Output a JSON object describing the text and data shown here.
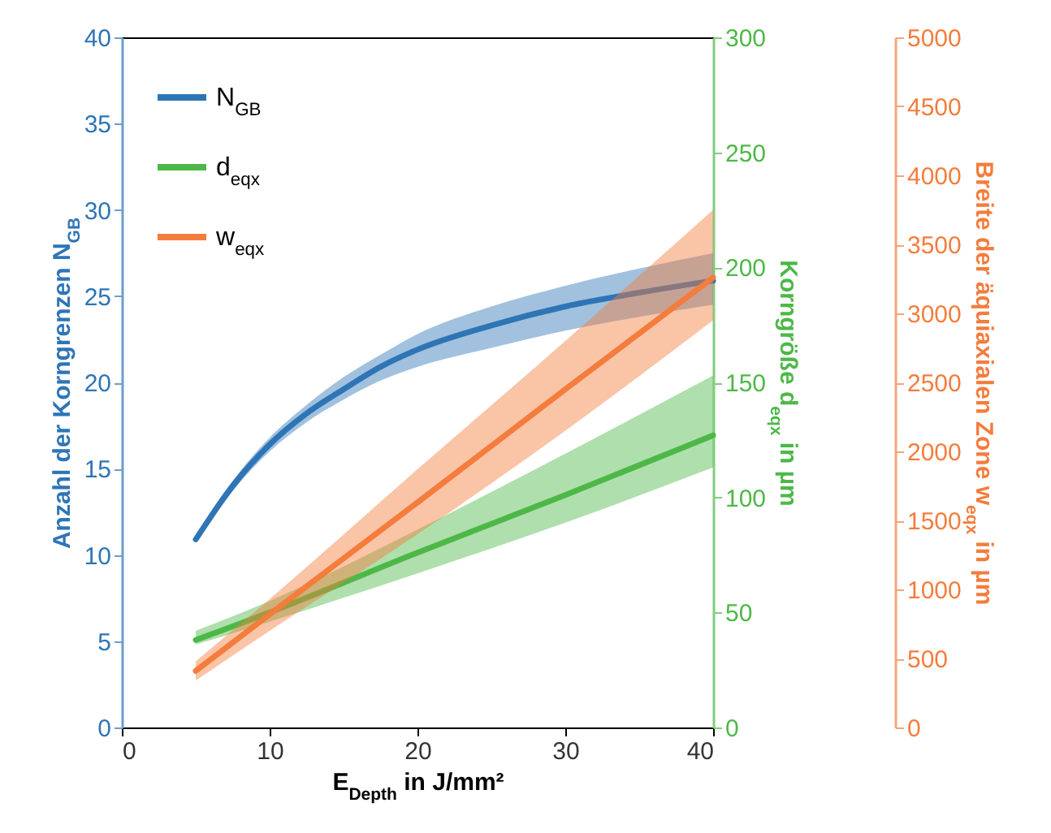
{
  "chart_data": {
    "type": "line",
    "xlabel": "E$_{Depth}$ in J/mm²",
    "ylabel": "Anzahl der Korngrenzen N$_{GB}$",
    "y2label": "Korngröße d$_{eqx}$ in µm",
    "y3label": "Breite der äquiaxialen Zone w$_{eqx}$ in µm",
    "xlim": [
      0,
      40
    ],
    "xticks": [
      0,
      10,
      20,
      30,
      40
    ],
    "ylim": [
      0,
      40
    ],
    "yticks": [
      0,
      5,
      10,
      15,
      20,
      25,
      30,
      35,
      40
    ],
    "y2lim": [
      0,
      300
    ],
    "y2ticks": [
      0,
      50,
      100,
      150,
      200,
      250,
      300
    ],
    "y3lim": [
      0,
      5000
    ],
    "y3ticks": [
      0,
      500,
      1000,
      1500,
      2000,
      2500,
      3000,
      3500,
      4000,
      4500,
      5000
    ],
    "grid": false,
    "legend": "top left",
    "line_style": "solid",
    "series": [
      {
        "name": "N$_{GB}$",
        "color": "#2e75b6",
        "x": [
          5,
          7.5,
          10,
          12.5,
          15,
          17.5,
          20,
          25,
          30,
          35,
          40
        ],
        "values": [
          10.9,
          14.0,
          16.4,
          18.2,
          19.6,
          20.9,
          21.9,
          23.3,
          24.4,
          25.2,
          25.9
        ],
        "lower": [
          10.7,
          13.7,
          16.0,
          17.7,
          19.0,
          20.1,
          20.9,
          22.0,
          23.0,
          23.8,
          24.5
        ],
        "upper": [
          11.1,
          14.3,
          16.8,
          18.7,
          20.3,
          21.6,
          22.8,
          24.4,
          25.6,
          26.6,
          27.5
        ]
      },
      {
        "name": "d$_{eqx}$",
        "color": "#4db848",
        "axis": "y2",
        "x": [
          5,
          10,
          20,
          30,
          40
        ],
        "values": [
          38,
          50,
          76,
          101,
          127
        ],
        "lower": [
          36,
          46,
          67,
          89,
          113
        ],
        "upper": [
          42,
          55,
          86,
          119,
          153
        ]
      },
      {
        "name": "w$_{eqx}$",
        "color": "#f47c3c",
        "axis": "y3",
        "x": [
          5,
          10,
          20,
          30,
          40
        ],
        "values": [
          410,
          820,
          1630,
          2450,
          3260
        ],
        "lower": [
          340,
          700,
          1400,
          2150,
          2950
        ],
        "upper": [
          480,
          930,
          1870,
          2800,
          3750
        ]
      }
    ]
  }
}
